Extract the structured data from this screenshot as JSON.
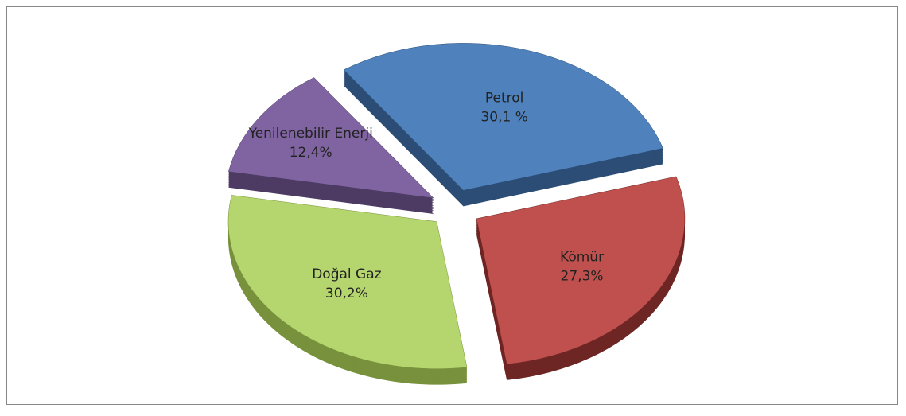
{
  "chart_data": {
    "type": "pie",
    "categories": [
      "Petrol",
      "Kömür",
      "Doğal Gaz",
      "Yenilenebilir Enerji"
    ],
    "values": [
      30.1,
      27.3,
      30.2,
      12.4
    ],
    "value_labels": [
      "30,1 %",
      "27,3%",
      "30,2%",
      "12,4%"
    ],
    "colors": [
      "#4f81bd",
      "#c0504d",
      "#b5d56e",
      "#8064a2"
    ],
    "side_colors": [
      "#2c4d75",
      "#6e2624",
      "#78913c",
      "#4d3b63"
    ],
    "exploded": true,
    "three_d": true
  }
}
